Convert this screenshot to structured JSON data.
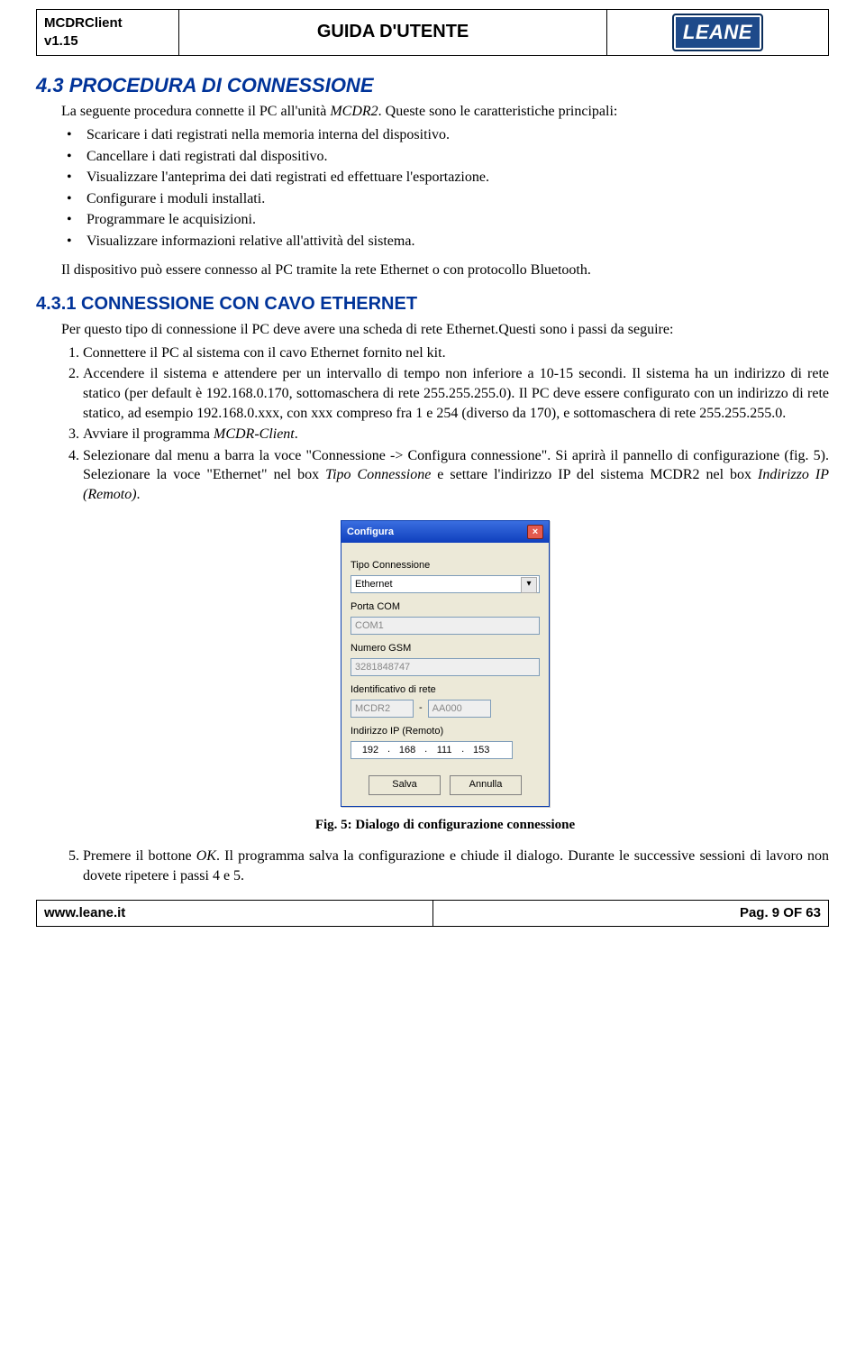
{
  "header": {
    "product": "MCDRClient",
    "version": "v1.15",
    "title": "GUIDA D'UTENTE",
    "logo_text": "LEANE",
    "logo_bg": "#1e4a8a",
    "logo_border": "#0a2d5a"
  },
  "sections": {
    "h2_number": "4.3",
    "h2_title": "PROCEDURA DI CONNESSIONE",
    "intro_1": "La seguente procedura connette il PC all'unità ",
    "intro_unit": "MCDR2",
    "intro_1_tail": ".   Queste sono le caratteristiche principali:",
    "bullets": [
      "Scaricare i dati registrati nella memoria interna del dispositivo.",
      "Cancellare i dati registrati dal dispositivo.",
      "Visualizzare l'anteprima dei dati registrati ed effettuare l'esportazione.",
      "Configurare i moduli installati.",
      "Programmare le acquisizioni.",
      "Visualizzare informazioni relative all'attività del sistema."
    ],
    "intro_2": "Il dispositivo può essere connesso al PC tramite la rete Ethernet o con protocollo Bluetooth.",
    "h3_number": "4.3.1",
    "h3_title": "CONNESSIONE CON CAVO ETHERNET",
    "para_431": "Per questo tipo di connessione il PC deve avere una scheda di rete Ethernet.Questi sono i passi da seguire:",
    "steps": [
      {
        "text": "Connettere il PC al sistema con il cavo Ethernet fornito nel kit."
      },
      {
        "text": "Accendere il sistema e attendere per un intervallo di tempo non inferiore a 10-15 secondi. Il sistema ha un indirizzo di rete statico (per default è 192.168.0.170, sottomaschera di rete 255.255.255.0). Il PC deve essere configurato con un indirizzo di rete statico, ad esempio 192.168.0.xxx, con xxx compreso fra 1 e 254 (diverso da 170), e sottomaschera di rete 255.255.255.0."
      },
      {
        "text_pre": "Avviare il programma ",
        "italic": "MCDR-Client",
        "text_post": "."
      },
      {
        "text_pre": "Selezionare dal menu a barra la voce \"Connessione -> Configura connessione\". Si aprirà il pannello di configurazione (fig. 5). Selezionare la voce \"Ethernet\" nel box ",
        "italic": "Tipo Connessione",
        "text_mid": " e settare l'indirizzo IP del sistema MCDR2 nel box ",
        "italic2": "Indirizzo IP (Remoto)",
        "text_post": "."
      }
    ],
    "fig_caption": "Fig. 5: Dialogo di configurazione connessione",
    "step5_pre": "Premere il bottone ",
    "step5_italic": "OK",
    "step5_post": ". Il programma salva la configurazione e chiude il dialogo. Durante le successive sessioni di lavoro non dovete ripetere i passi 4 e 5."
  },
  "dialog": {
    "title": "Configura",
    "labels": {
      "tipo": "Tipo Connessione",
      "porta": "Porta COM",
      "gsm": "Numero GSM",
      "idrete": "Identificativo di rete",
      "ip": "Indirizzo IP (Remoto)"
    },
    "values": {
      "tipo": "Ethernet",
      "porta": "COM1",
      "gsm": "3281848747",
      "id1": "MCDR2",
      "id2": "AA000",
      "ip": [
        "192",
        "168",
        "111",
        "153"
      ]
    },
    "buttons": {
      "save": "Salva",
      "cancel": "Annulla"
    }
  },
  "footer": {
    "site": "www.leane.it",
    "page": "Pag. 9 OF 63"
  },
  "colors": {
    "heading": "#003399",
    "page_bg": "#ffffff",
    "dialog_bg": "#ece9d8",
    "titlebar_gradient_top": "#3a6ee0",
    "titlebar_gradient_bottom": "#0f3fbd",
    "input_border": "#7f9db9"
  }
}
